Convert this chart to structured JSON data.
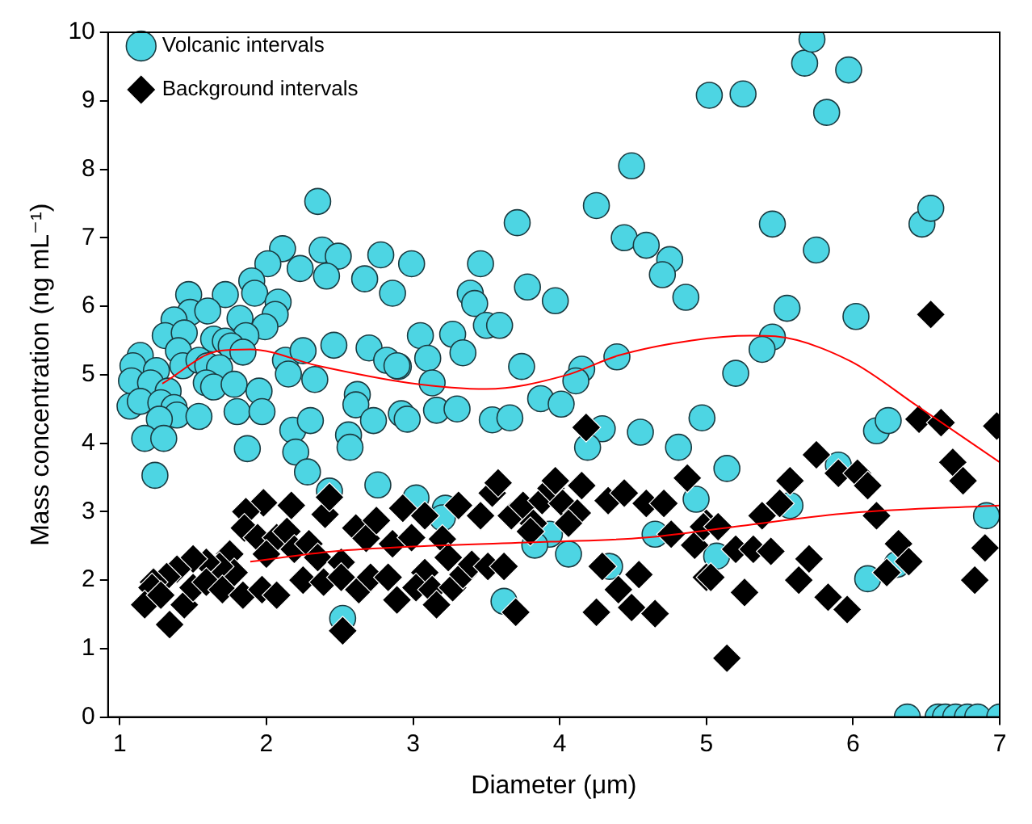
{
  "chart_data": {
    "type": "scatter",
    "xlabel": "Diameter (μm)",
    "ylabel": "Mass concentration (ng mL⁻¹)",
    "xlim": [
      0.92,
      7
    ],
    "xticks": [
      1,
      2,
      3,
      4,
      5,
      6,
      7
    ],
    "ylim": [
      0,
      10
    ],
    "yticks": [
      0,
      1,
      2,
      3,
      4,
      5,
      6,
      7,
      8,
      9,
      10
    ],
    "grid": false,
    "legend": "top left",
    "series": [
      {
        "name": "Volcanic intervals",
        "color": "#4dd5e3",
        "marker": "circle",
        "x": [
          5.02,
          5.25,
          5.67,
          5.72,
          5.97,
          5.82,
          4.49,
          4.25,
          3.71,
          4.44,
          4.59,
          4.75,
          4.7,
          4.86,
          3.46,
          2.99,
          2.86,
          3.39,
          3.42,
          3.78,
          3.97,
          3.05,
          3.27,
          3.5,
          3.59,
          3.34,
          3.1,
          2.9,
          3.74,
          3.13,
          4.15,
          4.11,
          4.39,
          2.92,
          2.96,
          3.16,
          3.3,
          3.54,
          3.66,
          3.87,
          4.01,
          4.29,
          4.55,
          4.81,
          4.19,
          4.97,
          2.35,
          2.11,
          2.01,
          2.23,
          2.38,
          2.49,
          2.41,
          2.78,
          2.67,
          1.9,
          1.92,
          1.72,
          1.47,
          1.48,
          1.6,
          1.37,
          1.31,
          1.44,
          1.82,
          2.08,
          2.06,
          1.99,
          1.64,
          1.86,
          1.72,
          1.76,
          1.84,
          1.4,
          1.43,
          1.54,
          1.6,
          1.68,
          1.14,
          1.09,
          1.25,
          1.08,
          1.21,
          1.33,
          1.59,
          1.64,
          1.78,
          1.95,
          1.07,
          1.14,
          1.28,
          1.37,
          1.39,
          1.27,
          1.54,
          1.17,
          1.3,
          1.8,
          1.97,
          1.87,
          1.24,
          2.13,
          2.15,
          2.25,
          2.33,
          2.46,
          2.7,
          2.82,
          2.89,
          2.62,
          2.61,
          2.73,
          2.18,
          2.56,
          2.57,
          2.3,
          2.2,
          2.28,
          2.76,
          2.52,
          2.43,
          3.02,
          3.22,
          3.2,
          3.62,
          3.93,
          3.83,
          4.06,
          4.65,
          4.34,
          4.93,
          5.45,
          5.75,
          6.47,
          6.53,
          6.02,
          5.55,
          5.45,
          5.38,
          5.2,
          5.14,
          5.07,
          5.57,
          5.9,
          6.16,
          6.24,
          6.91,
          6.1,
          6.3,
          6.37,
          6.58,
          6.63,
          6.7,
          6.78,
          6.85,
          7.0
        ],
        "values": [
          9.08,
          9.1,
          9.55,
          9.9,
          9.45,
          8.83,
          8.05,
          7.47,
          7.22,
          7.0,
          6.89,
          6.68,
          6.46,
          6.13,
          6.62,
          6.62,
          6.19,
          6.19,
          6.04,
          6.28,
          6.08,
          5.57,
          5.59,
          5.72,
          5.72,
          5.32,
          5.24,
          5.12,
          5.12,
          4.88,
          5.08,
          4.91,
          5.26,
          4.43,
          4.35,
          4.48,
          4.5,
          4.34,
          4.37,
          4.65,
          4.57,
          4.21,
          4.16,
          3.94,
          3.94,
          4.37,
          7.53,
          6.84,
          6.62,
          6.55,
          6.82,
          6.73,
          6.44,
          6.75,
          6.4,
          6.37,
          6.19,
          6.17,
          6.17,
          5.91,
          5.93,
          5.8,
          5.57,
          5.61,
          5.82,
          6.06,
          5.88,
          5.7,
          5.52,
          5.57,
          5.49,
          5.42,
          5.33,
          5.35,
          5.13,
          5.21,
          5.13,
          5.1,
          5.28,
          5.13,
          5.06,
          4.91,
          4.88,
          4.76,
          4.88,
          4.82,
          4.86,
          4.76,
          4.54,
          4.61,
          4.59,
          4.52,
          4.41,
          4.35,
          4.39,
          4.07,
          4.07,
          4.46,
          4.46,
          3.92,
          3.53,
          5.21,
          5.01,
          5.35,
          4.93,
          5.43,
          5.39,
          5.21,
          5.13,
          4.71,
          4.56,
          4.33,
          4.19,
          4.12,
          3.94,
          4.33,
          3.87,
          3.58,
          3.39,
          1.44,
          3.3,
          3.2,
          3.05,
          2.91,
          1.69,
          2.67,
          2.51,
          2.38,
          2.67,
          2.2,
          3.18,
          7.2,
          6.82,
          7.2,
          7.43,
          5.85,
          5.97,
          5.55,
          5.37,
          5.02,
          3.63,
          2.35,
          3.09,
          3.68,
          4.18,
          4.33,
          2.94,
          2.02,
          2.23,
          0,
          0,
          0,
          0,
          0,
          0,
          0
        ]
      },
      {
        "name": "Background intervals",
        "color": "#000000",
        "marker": "diamond",
        "x": [
          1.98,
          2.17,
          1.86,
          2.4,
          2.43,
          1.85,
          1.94,
          2.07,
          2.14,
          2.0,
          2.19,
          2.29,
          2.35,
          2.51,
          2.61,
          2.68,
          2.75,
          2.86,
          2.93,
          1.75,
          1.78,
          1.68,
          1.59,
          1.5,
          1.39,
          1.32,
          1.23,
          1.22,
          1.17,
          1.28,
          1.34,
          1.44,
          1.5,
          1.59,
          1.7,
          1.84,
          1.97,
          2.07,
          2.25,
          2.39,
          2.51,
          2.63,
          2.71,
          2.83,
          2.89,
          2.52,
          3.08,
          3.31,
          3.54,
          3.58,
          3.46,
          3.67,
          3.75,
          3.88,
          3.94,
          3.97,
          4.02,
          4.12,
          4.15,
          4.06,
          3.82,
          3.8,
          2.99,
          3.2,
          3.24,
          3.08,
          3.02,
          3.13,
          3.16,
          3.27,
          3.34,
          3.4,
          3.51,
          3.62,
          3.7,
          4.18,
          4.33,
          4.44,
          4.59,
          4.71,
          4.29,
          4.4,
          4.54,
          4.49,
          4.65,
          4.25,
          4.76,
          4.87,
          4.92,
          5.0,
          5.0,
          4.98,
          5.08,
          5.03,
          5.2,
          5.32,
          5.44,
          5.26,
          5.14,
          5.38,
          5.5,
          5.57,
          5.75,
          5.7,
          5.63,
          5.83,
          5.96,
          5.9,
          6.03,
          6.1,
          6.16,
          6.23,
          6.31,
          6.38,
          6.45,
          6.53,
          6.6,
          6.68,
          6.75,
          6.9,
          6.83,
          6.98
        ],
        "values": [
          3.13,
          3.09,
          3.0,
          2.96,
          3.21,
          2.76,
          2.62,
          2.62,
          2.71,
          2.38,
          2.45,
          2.53,
          2.33,
          2.26,
          2.76,
          2.61,
          2.87,
          2.53,
          3.05,
          2.38,
          2.11,
          2.2,
          2.26,
          2.31,
          2.16,
          2.05,
          1.97,
          1.89,
          1.64,
          1.78,
          1.35,
          1.64,
          1.89,
          1.97,
          1.86,
          1.78,
          1.86,
          1.78,
          2.0,
          1.97,
          2.04,
          1.86,
          2.04,
          2.04,
          1.71,
          1.26,
          2.94,
          3.09,
          3.27,
          3.42,
          2.94,
          2.94,
          3.09,
          3.16,
          3.34,
          3.45,
          3.12,
          2.98,
          3.38,
          2.83,
          2.83,
          2.71,
          2.62,
          2.6,
          2.33,
          2.11,
          1.89,
          1.86,
          1.64,
          1.89,
          2.08,
          2.23,
          2.2,
          2.2,
          1.53,
          4.23,
          3.16,
          3.27,
          3.12,
          3.12,
          2.2,
          1.86,
          2.08,
          1.6,
          1.51,
          1.53,
          2.67,
          3.49,
          2.51,
          2.83,
          2.04,
          2.78,
          2.78,
          2.04,
          2.45,
          2.45,
          2.42,
          1.82,
          0.86,
          2.94,
          3.12,
          3.45,
          3.83,
          2.31,
          2.0,
          1.75,
          1.57,
          3.56,
          3.56,
          3.38,
          2.94,
          2.11,
          2.53,
          2.27,
          4.35,
          5.88,
          4.3,
          3.72,
          3.45,
          2.47,
          2.0,
          4.25
        ]
      },
      {
        "type": "line",
        "color": "#ff0000",
        "marker": "none",
        "x": [
          1.29,
          1.68,
          1.89,
          2.35,
          2.97,
          3.5,
          4.04,
          4.4,
          4.9,
          5.3,
          5.47,
          5.98,
          6.44,
          7.0
        ],
        "values": [
          4.87,
          5.35,
          5.37,
          5.13,
          4.88,
          4.79,
          4.99,
          5.28,
          5.5,
          5.57,
          5.56,
          5.2,
          4.54,
          3.72
        ]
      },
      {
        "type": "line",
        "color": "#ff0000",
        "marker": "none",
        "x": [
          1.89,
          2.46,
          3.0,
          3.94,
          4.58,
          5.12,
          5.98,
          7.0
        ],
        "values": [
          2.27,
          2.42,
          2.49,
          2.56,
          2.62,
          2.76,
          2.98,
          3.09
        ]
      }
    ]
  }
}
